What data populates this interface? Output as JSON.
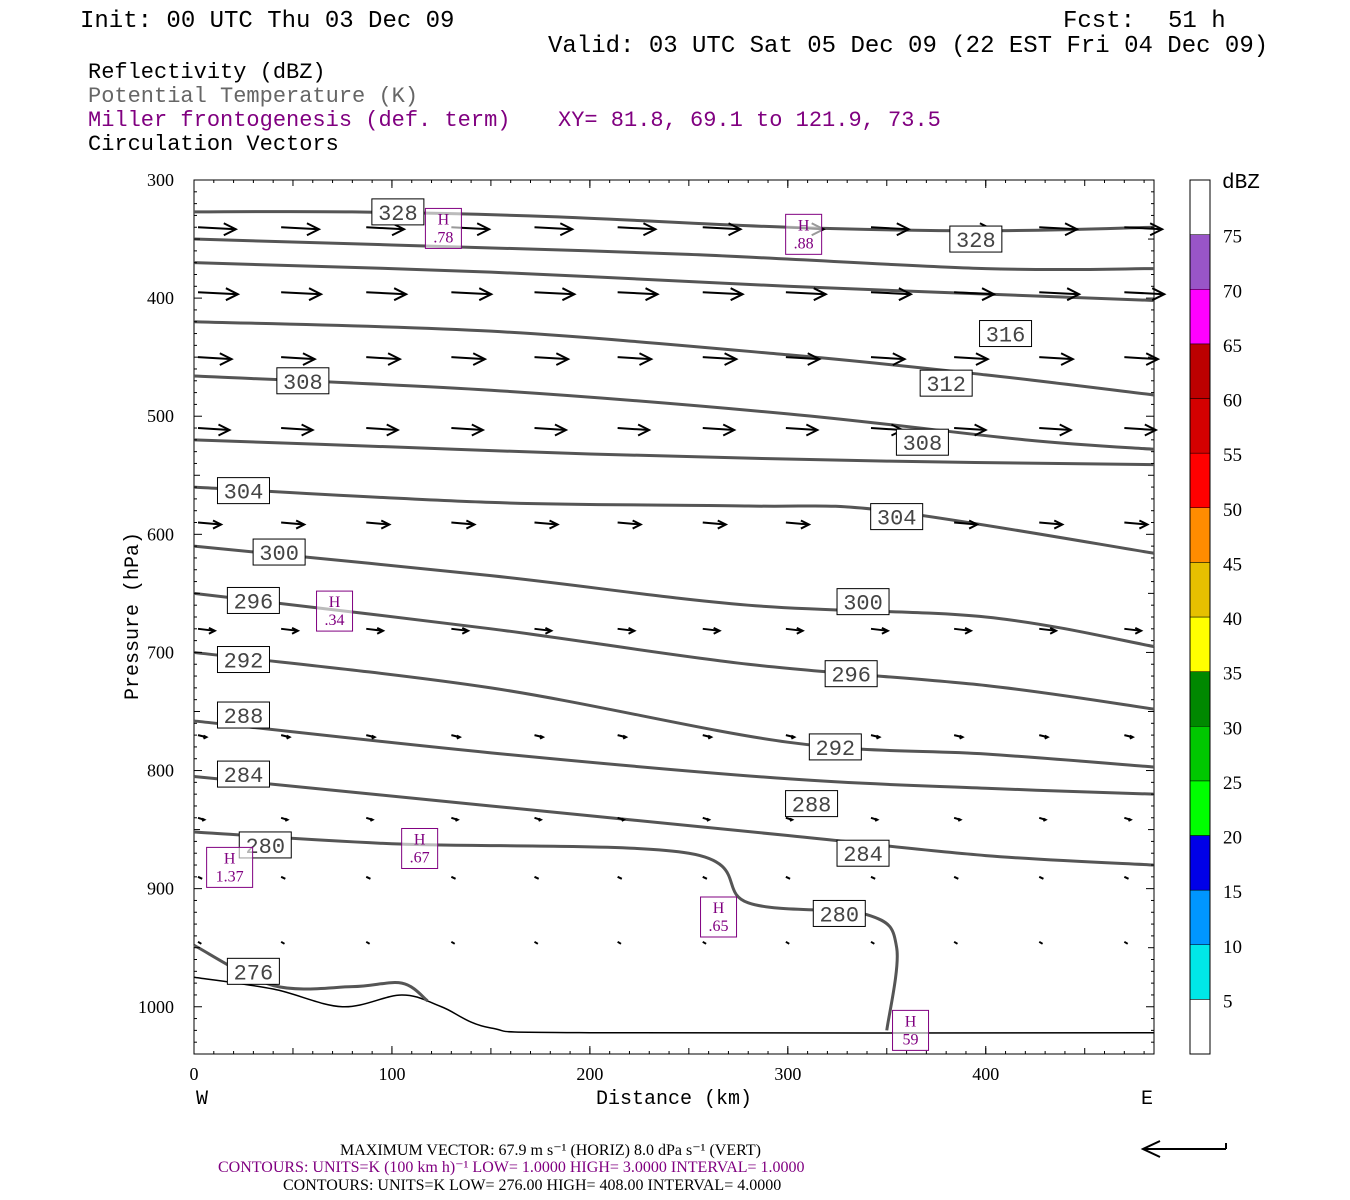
{
  "header": {
    "init": "Init: 00 UTC Thu 03 Dec 09",
    "fcst_label": "Fcst:",
    "fcst_hours": "51 h",
    "valid": "Valid: 03 UTC Sat 05 Dec 09 (22 EST Fri 04 Dec 09)",
    "fields": [
      "Reflectivity (dBZ)",
      "Potential Temperature (K)",
      "Miller frontogenesis (def. term)",
      "Circulation Vectors"
    ],
    "xy": "XY=  81.8, 69.1 to 121.9, 73.5"
  },
  "colors": {
    "reflectivity": "#000000",
    "theta": "#555555",
    "frontogenesis": "#800080",
    "vectors": "#000000"
  },
  "footer": {
    "max_vector": "MAXIMUM VECTOR:  67.9 m s⁻¹ (HORIZ)          8.0 dPa s⁻¹ (VERT)",
    "contours_purple": "CONTOURS:  UNITS=K (100 km h)⁻¹  LOW=  1.0000       HIGH=  3.0000       INTERVAL=   1.0000",
    "contours_black": "CONTOURS:  UNITS=K  LOW=  276.00       HIGH=  408.00       INTERVAL=   4.0000"
  },
  "colorbar": {
    "unit": "dBZ",
    "levels": [
      "5",
      "10",
      "15",
      "20",
      "25",
      "30",
      "35",
      "40",
      "45",
      "50",
      "55",
      "60",
      "65",
      "70",
      "75"
    ],
    "colors": [
      "#ffffff",
      "#00e8e8",
      "#0096ff",
      "#0000e8",
      "#00ff00",
      "#00c800",
      "#008800",
      "#ffff00",
      "#e6c000",
      "#ff8c00",
      "#ff0000",
      "#d40000",
      "#bc0000",
      "#ff00ff",
      "#9955c8",
      "#ffffff"
    ]
  },
  "chart_data": {
    "type": "cross-section",
    "xlabel": "Distance (km)",
    "ylabel": "Pressure (hPa)",
    "xlim": [
      0,
      485
    ],
    "ylim": [
      1040,
      300
    ],
    "x_ticks": [
      "0",
      "100",
      "200",
      "300",
      "400"
    ],
    "y_ticks": [
      "300",
      "400",
      "500",
      "600",
      "700",
      "800",
      "900",
      "1000"
    ],
    "x_tick_values": [
      0,
      100,
      200,
      300,
      400
    ],
    "y_tick_values": [
      300,
      400,
      500,
      600,
      700,
      800,
      900,
      1000
    ],
    "west_label": "W",
    "east_label": "E",
    "theta_contours": [
      {
        "value": "328",
        "points": [
          [
            0,
            327
          ],
          [
            80,
            327
          ],
          [
            180,
            331
          ],
          [
            300,
            340
          ],
          [
            400,
            343
          ],
          [
            485,
            340
          ]
        ]
      },
      {
        "value": "328",
        "points": [
          [
            0,
            350
          ],
          [
            100,
            355
          ],
          [
            250,
            363
          ],
          [
            400,
            375
          ],
          [
            485,
            375
          ]
        ]
      },
      {
        "value": "",
        "points": [
          [
            0,
            370
          ],
          [
            150,
            378
          ],
          [
            300,
            390
          ],
          [
            485,
            402
          ]
        ]
      },
      {
        "value": "316",
        "points": [
          [
            0,
            420
          ],
          [
            150,
            428
          ],
          [
            300,
            448
          ],
          [
            400,
            465
          ],
          [
            485,
            482
          ]
        ]
      },
      {
        "value": "312",
        "points": [
          [
            0,
            466
          ],
          [
            150,
            478
          ],
          [
            300,
            498
          ],
          [
            420,
            520
          ],
          [
            485,
            528
          ]
        ]
      },
      {
        "value": "308",
        "points": [
          [
            0,
            520
          ],
          [
            100,
            526
          ],
          [
            200,
            532
          ],
          [
            350,
            538
          ],
          [
            485,
            541
          ]
        ]
      },
      {
        "value": "304",
        "points": [
          [
            0,
            560
          ],
          [
            150,
            573
          ],
          [
            280,
            576
          ],
          [
            350,
            580
          ],
          [
            485,
            616
          ]
        ]
      },
      {
        "value": "300",
        "points": [
          [
            0,
            610
          ],
          [
            150,
            635
          ],
          [
            280,
            660
          ],
          [
            400,
            670
          ],
          [
            485,
            695
          ]
        ]
      },
      {
        "value": "296",
        "points": [
          [
            0,
            650
          ],
          [
            150,
            680
          ],
          [
            280,
            710
          ],
          [
            400,
            728
          ],
          [
            485,
            748
          ]
        ]
      },
      {
        "value": "292",
        "points": [
          [
            0,
            700
          ],
          [
            150,
            730
          ],
          [
            300,
            776
          ],
          [
            400,
            786
          ],
          [
            485,
            797
          ]
        ]
      },
      {
        "value": "288",
        "points": [
          [
            0,
            758
          ],
          [
            150,
            785
          ],
          [
            300,
            807
          ],
          [
            400,
            815
          ],
          [
            485,
            820
          ]
        ]
      },
      {
        "value": "284",
        "points": [
          [
            0,
            805
          ],
          [
            150,
            830
          ],
          [
            300,
            855
          ],
          [
            400,
            872
          ],
          [
            485,
            880
          ]
        ]
      },
      {
        "value": "280",
        "points": [
          [
            0,
            852
          ],
          [
            100,
            862
          ],
          [
            250,
            870
          ],
          [
            280,
            912
          ],
          [
            340,
            922
          ],
          [
            355,
            950
          ],
          [
            350,
            1020
          ]
        ]
      },
      {
        "value": "276",
        "points": [
          [
            0,
            948
          ],
          [
            40,
            982
          ],
          [
            80,
            983
          ],
          [
            105,
            980
          ],
          [
            118,
            995
          ]
        ]
      }
    ],
    "theta_labels": [
      {
        "text": "328",
        "x": 103,
        "p": 327
      },
      {
        "text": "328",
        "x": 395,
        "p": 350
      },
      {
        "text": "316",
        "x": 410,
        "p": 430
      },
      {
        "text": "308",
        "x": 55,
        "p": 470
      },
      {
        "text": "312",
        "x": 380,
        "p": 472
      },
      {
        "text": "308",
        "x": 368,
        "p": 522
      },
      {
        "text": "304",
        "x": 25,
        "p": 563
      },
      {
        "text": "304",
        "x": 355,
        "p": 585
      },
      {
        "text": "300",
        "x": 43,
        "p": 615
      },
      {
        "text": "300",
        "x": 338,
        "p": 657
      },
      {
        "text": "296",
        "x": 30,
        "p": 656
      },
      {
        "text": "296",
        "x": 332,
        "p": 718
      },
      {
        "text": "292",
        "x": 25,
        "p": 706
      },
      {
        "text": "292",
        "x": 324,
        "p": 780
      },
      {
        "text": "288",
        "x": 25,
        "p": 753
      },
      {
        "text": "288",
        "x": 312,
        "p": 828
      },
      {
        "text": "284",
        "x": 25,
        "p": 803
      },
      {
        "text": "284",
        "x": 338,
        "p": 870
      },
      {
        "text": "280",
        "x": 36,
        "p": 863
      },
      {
        "text": "280",
        "x": 326,
        "p": 921
      },
      {
        "text": "276",
        "x": 30,
        "p": 970
      }
    ],
    "frontogenesis_highs": [
      {
        "label": "H",
        "value": ".78",
        "x": 126,
        "p": 341
      },
      {
        "label": "H",
        "value": ".88",
        "x": 308,
        "p": 346
      },
      {
        "label": "H",
        "value": ".34",
        "x": 71,
        "p": 665
      },
      {
        "label": "H",
        "value": "1.37",
        "x": 18,
        "p": 882
      },
      {
        "label": "H",
        "value": ".67",
        "x": 114,
        "p": 866
      },
      {
        "label": "H",
        "value": ".65",
        "x": 265,
        "p": 924
      },
      {
        "label": "H",
        "value": "59",
        "x": 362,
        "p": 1020
      }
    ],
    "terrain": [
      [
        0,
        975
      ],
      [
        40,
        985
      ],
      [
        75,
        1000
      ],
      [
        105,
        990
      ],
      [
        125,
        1000
      ],
      [
        150,
        1018
      ],
      [
        200,
        1022
      ],
      [
        485,
        1022
      ]
    ],
    "vector_rows": [
      {
        "p": 340,
        "u": 0.9
      },
      {
        "p": 395,
        "u": 0.95
      },
      {
        "p": 450,
        "u": 0.8
      },
      {
        "p": 510,
        "u": 0.75
      },
      {
        "p": 590,
        "u": 0.55
      },
      {
        "p": 680,
        "u": 0.4
      },
      {
        "p": 770,
        "u": 0.2
      },
      {
        "p": 840,
        "u": 0.15
      },
      {
        "p": 890,
        "u": 0.1
      },
      {
        "p": 945,
        "u": 0.08
      }
    ]
  }
}
